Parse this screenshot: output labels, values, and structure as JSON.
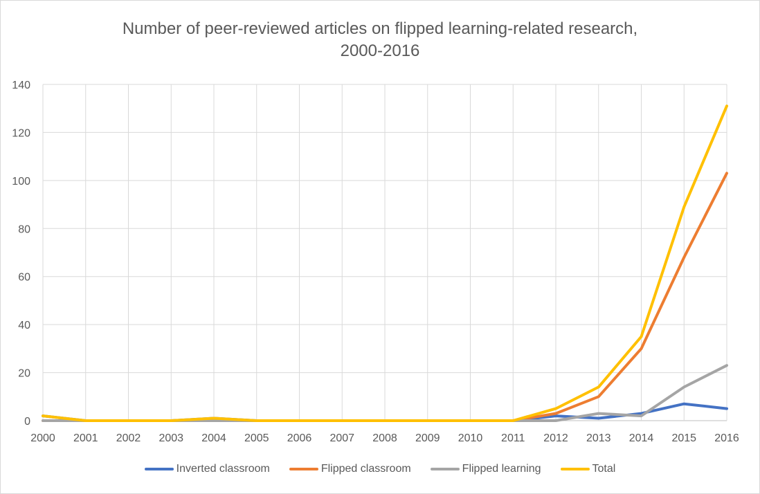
{
  "chart_data": {
    "type": "line",
    "title_line1": "Number of peer-reviewed articles on flipped learning-related research,",
    "title_line2": "2000-2016",
    "xlabel": "",
    "ylabel": "",
    "x": [
      "2000",
      "2001",
      "2002",
      "2003",
      "2004",
      "2005",
      "2006",
      "2007",
      "2008",
      "2009",
      "2010",
      "2011",
      "2012",
      "2013",
      "2014",
      "2015",
      "2016"
    ],
    "yticks": [
      0,
      20,
      40,
      60,
      80,
      100,
      120,
      140
    ],
    "ylim": [
      0,
      140
    ],
    "grid": true,
    "legend_position": "bottom",
    "series": [
      {
        "name": "Inverted classroom",
        "color": "#4472c4",
        "values": [
          2,
          0,
          0,
          0,
          1,
          0,
          0,
          0,
          0,
          0,
          0,
          0,
          2,
          1,
          3,
          7,
          5
        ]
      },
      {
        "name": "Flipped classroom",
        "color": "#ed7d31",
        "values": [
          0,
          0,
          0,
          0,
          0,
          0,
          0,
          0,
          0,
          0,
          0,
          0,
          3,
          10,
          30,
          68,
          103
        ]
      },
      {
        "name": "Flipped learning",
        "color": "#a5a5a5",
        "values": [
          0,
          0,
          0,
          0,
          0,
          0,
          0,
          0,
          0,
          0,
          0,
          0,
          0,
          3,
          2,
          14,
          23
        ]
      },
      {
        "name": "Total",
        "color": "#ffc000",
        "values": [
          2,
          0,
          0,
          0,
          1,
          0,
          0,
          0,
          0,
          0,
          0,
          0,
          5,
          14,
          35,
          89,
          131
        ]
      }
    ]
  }
}
